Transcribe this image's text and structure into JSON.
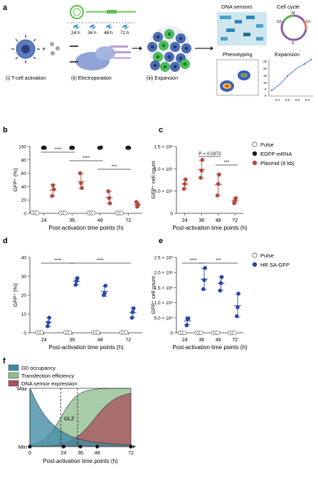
{
  "panels": {
    "a": {
      "letter": "a",
      "steps": [
        "(i) T-cell activation",
        "(ii) Electroporation",
        "(iii) Expansion"
      ],
      "timepoints": [
        "24 h",
        "36 h",
        "48 h",
        "72 h"
      ],
      "plus_sign": "+",
      "readouts": [
        "DNA sensors",
        "Cell cycle",
        "Phenotyping",
        "Expansion"
      ],
      "cell_cycle_labels": [
        "M",
        "G2",
        "G1",
        "S"
      ],
      "expansion_x_ticks": [
        "0.1",
        "0.2",
        "0.3",
        "0.4"
      ],
      "expansion_y_ticks": [
        "0",
        "5",
        "10",
        "15",
        "20",
        "25"
      ]
    },
    "b": {
      "letter": "b"
    },
    "c": {
      "letter": "c"
    },
    "d": {
      "letter": "d"
    },
    "e": {
      "letter": "e"
    },
    "f": {
      "letter": "f"
    }
  },
  "colors": {
    "plasmid": "#b24a3e",
    "egfp": "#1a1a1a",
    "hr": "#2b46a8",
    "g0": "#3f8aa5",
    "transfection": "#8fbc8f",
    "dna_sensor": "#a8525c"
  },
  "chart_data": [
    {
      "panel": "b",
      "type": "scatter",
      "xlabel": "Post-activation time points (h)",
      "ylabel": "GFP⁺ (%)",
      "categories": [
        "24",
        "36",
        "48",
        "72"
      ],
      "ylim": [
        0,
        100
      ],
      "yticks": [
        "0",
        "20",
        "40",
        "60",
        "80",
        "100"
      ],
      "series": [
        {
          "name": "Pulse",
          "values": [
            [
              1,
              1,
              0.5
            ],
            [
              0.5,
              1,
              0.5
            ],
            [
              0.5,
              0.5,
              0.5
            ],
            [
              0.5,
              0.5,
              0.5
            ]
          ],
          "marker": "open"
        },
        {
          "name": "EGFP mRNA",
          "values": [
            [
              98,
              98.5,
              98
            ],
            [
              98,
              98.5,
              98
            ],
            [
              98,
              98,
              98.5
            ],
            [
              98,
              98.5,
              98
            ]
          ],
          "marker": "black"
        },
        {
          "name": "Plasmid (8 kb)",
          "values": [
            [
              26,
              42,
              36
            ],
            [
              60,
              45,
              38
            ],
            [
              33,
              23,
              15
            ],
            [
              17,
              10,
              13
            ]
          ],
          "marker": "red"
        }
      ],
      "annotations": [
        {
          "from": "24",
          "to": "36",
          "text": "****"
        },
        {
          "from": "36",
          "to": "48",
          "text": "****"
        },
        {
          "from": "48",
          "to": "72",
          "text": "***"
        }
      ]
    },
    {
      "panel": "c",
      "type": "scatter",
      "xlabel": "Post-activation time points (h)",
      "ylabel": "GFP⁺ cell count",
      "categories": [
        "24",
        "36",
        "48",
        "72"
      ],
      "ylim": [
        0,
        1500000
      ],
      "yticks": [
        "0",
        "5.0 × 10⁵",
        "1.0 × 10⁶",
        "1.5 × 10⁶"
      ],
      "series": [
        {
          "name": "Plasmid (8 kb)",
          "values": [
            [
              550000,
              660000,
              760000
            ],
            [
              800000,
              960000,
              1200000
            ],
            [
              400000,
              660000,
              870000
            ],
            [
              230000,
              280000,
              340000
            ]
          ],
          "marker": "red"
        }
      ],
      "annotations": [
        {
          "from": "36",
          "to": "48",
          "text": "P = 0.0372"
        },
        {
          "from": "48",
          "to": "72",
          "text": "***"
        }
      ]
    },
    {
      "panel": "d",
      "type": "scatter",
      "xlabel": "Post-activation time points (h)",
      "ylabel": "GFP⁺ (%)",
      "categories": [
        "24",
        "36",
        "48",
        "72"
      ],
      "ylim": [
        0,
        40
      ],
      "yticks": [
        "0",
        "10",
        "20",
        "30",
        "40"
      ],
      "series": [
        {
          "name": "Pulse",
          "values": [
            [
              0.2,
              0.2,
              0.2
            ],
            [
              0.2,
              0.2,
              0.2
            ],
            [
              0.2,
              0.2,
              0.2
            ],
            [
              0.2,
              0.2,
              0.2
            ]
          ],
          "marker": "open"
        },
        {
          "name": "HR SA-GFP",
          "values": [
            [
              3.5,
              5.5,
              8
            ],
            [
              25.5,
              27.5,
              29
            ],
            [
              20,
              21,
              25
            ],
            [
              8,
              11,
              13
            ]
          ],
          "marker": "blue"
        }
      ],
      "annotations": [
        {
          "from": "24",
          "to": "36",
          "text": "****"
        },
        {
          "from": "36",
          "to": "72",
          "text": "****"
        }
      ]
    },
    {
      "panel": "e",
      "type": "scatter",
      "xlabel": "Post-activation time points (h)",
      "ylabel": "GFP⁺ cell count",
      "categories": [
        "24",
        "36",
        "48",
        "72"
      ],
      "ylim": [
        0,
        2500000
      ],
      "yticks": [
        "0",
        "5.0 × 10⁵",
        "1.0 × 10⁶",
        "1.5 × 10⁶",
        "2.0 × 10⁶",
        "2.5 × 10⁶"
      ],
      "series": [
        {
          "name": "Pulse",
          "values": [
            [
              0,
              0,
              0
            ],
            [
              0,
              0,
              0
            ],
            [
              0,
              0,
              0
            ],
            [
              0,
              0,
              0
            ]
          ],
          "marker": "open"
        },
        {
          "name": "HR SA-GFP",
          "values": [
            [
              250000,
              460000,
              480000
            ],
            [
              1450000,
              1750000,
              2150000
            ],
            [
              1400000,
              1650000,
              1850000
            ],
            [
              550000,
              850000,
              1300000
            ]
          ],
          "marker": "blue"
        }
      ],
      "legend": [
        "Pulse",
        "HR SA-GFP"
      ],
      "annotations": [
        {
          "from": "24",
          "to": "36",
          "text": "****"
        },
        {
          "from": "36",
          "to": "72",
          "text": "***"
        }
      ]
    },
    {
      "panel": "f",
      "type": "area",
      "xlabel": "Post-activation time points (h)",
      "ylabel_top": "Max",
      "ylabel_bottom": "Min",
      "x_ticks": [
        "0",
        "24",
        "36",
        "48",
        "72"
      ],
      "x_values": [
        0,
        24,
        36,
        48,
        72
      ],
      "series": [
        {
          "name": "G0 occupancy",
          "values": [
            100,
            25,
            13,
            7,
            3
          ]
        },
        {
          "name": "Transfection efficiency",
          "values": [
            0,
            60,
            95,
            100,
            100
          ]
        },
        {
          "name": "DNA sensor expression",
          "values": [
            0,
            5,
            20,
            55,
            90
          ]
        }
      ],
      "window_label": "GLZ",
      "window_range": [
        22,
        34
      ]
    }
  ],
  "legend_bc": [
    "Pulse",
    "EGFP mRNA",
    "Plasmid (8 kb)"
  ],
  "legend_de": [
    "Pulse",
    "HR SA-GFP"
  ]
}
